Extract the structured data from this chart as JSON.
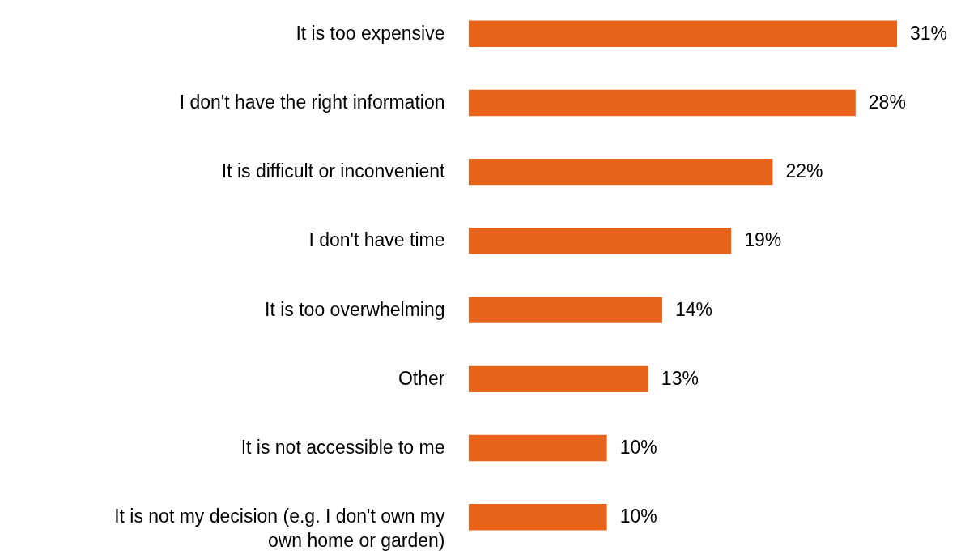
{
  "chart_data": {
    "type": "bar",
    "orientation": "horizontal",
    "categories": [
      "It is too expensive",
      "I don't have the right information",
      "It is difficult or inconvenient",
      "I don't have time",
      "It is too overwhelming",
      "Other",
      "It is not accessible to me",
      "It is not my decision (e.g. I don't own my own home or garden)"
    ],
    "values": [
      31,
      28,
      22,
      19,
      14,
      13,
      10,
      10
    ],
    "value_labels": [
      "31%",
      "28%",
      "22%",
      "19%",
      "14%",
      "13%",
      "10%",
      "10%"
    ],
    "color": "#e8631a",
    "grid": false
  }
}
